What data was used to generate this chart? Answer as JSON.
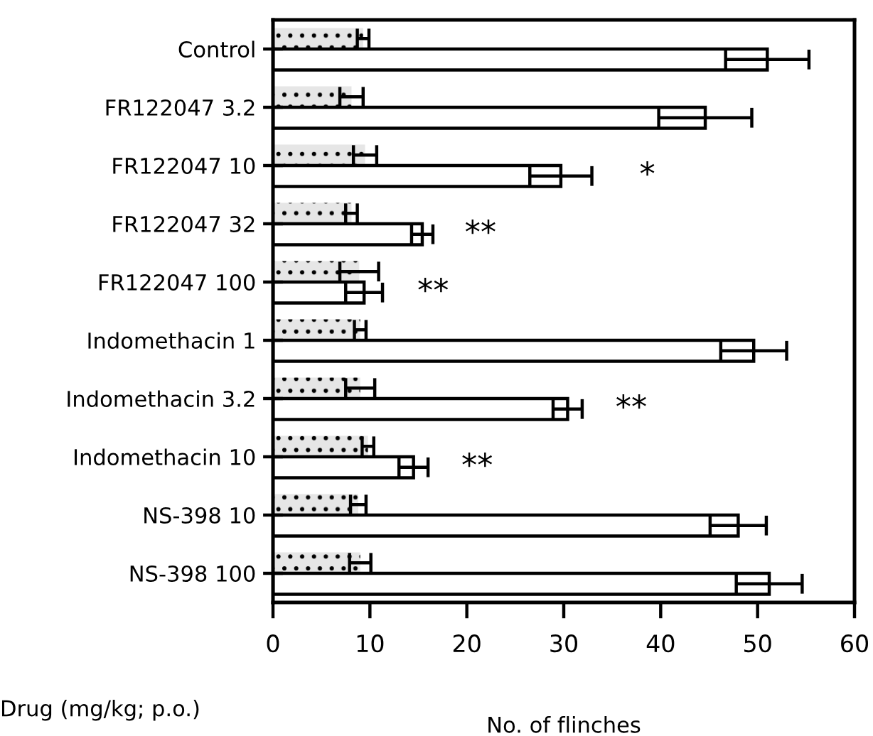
{
  "chart_data": {
    "type": "bar",
    "orientation": "horizontal",
    "xlabel": "No. of flinches",
    "ylabel": "Drug (mg/kg; p.o.)",
    "categories": [
      "Control",
      "FR122047 3.2",
      "FR122047 10",
      "FR122047 32",
      "FR122047 100",
      "Indomethacin 1",
      "Indomethacin 3.2",
      "Indomethacin 10",
      "NS-398 10",
      "NS-398 100"
    ],
    "series": [
      {
        "color": "#e6e6e6",
        "values": [
          9.3,
          8.1,
          9.5,
          8.1,
          8.9,
          9.0,
          9.0,
          9.8,
          8.8,
          9.0
        ],
        "errors": [
          0.6,
          1.2,
          1.2,
          0.6,
          2.0,
          0.6,
          1.5,
          0.6,
          0.8,
          1.1
        ]
      },
      {
        "color": "#ffffff",
        "values": [
          51.0,
          44.6,
          29.7,
          15.4,
          9.4,
          49.6,
          30.4,
          14.5,
          48.0,
          51.2
        ],
        "errors": [
          4.3,
          4.8,
          3.2,
          1.1,
          1.9,
          3.4,
          1.5,
          1.5,
          2.9,
          3.4
        ]
      }
    ],
    "xlim": [
      0,
      60
    ],
    "xticks": [
      0,
      10,
      20,
      30,
      40,
      50,
      60
    ],
    "grid": false,
    "legend": false,
    "annotations": [
      {
        "text": "*",
        "x": 29.7,
        "y": "FR122047 10"
      },
      {
        "text": "**",
        "x": 15.4,
        "y": "FR122047 32"
      },
      {
        "text": "**",
        "x": 9.4,
        "y": "FR122047 100"
      },
      {
        "text": "**",
        "x": 30.4,
        "y": "Indomethacin 3.2"
      },
      {
        "text": "**",
        "x": 14.5,
        "y": "Indomethacin 10"
      }
    ]
  }
}
